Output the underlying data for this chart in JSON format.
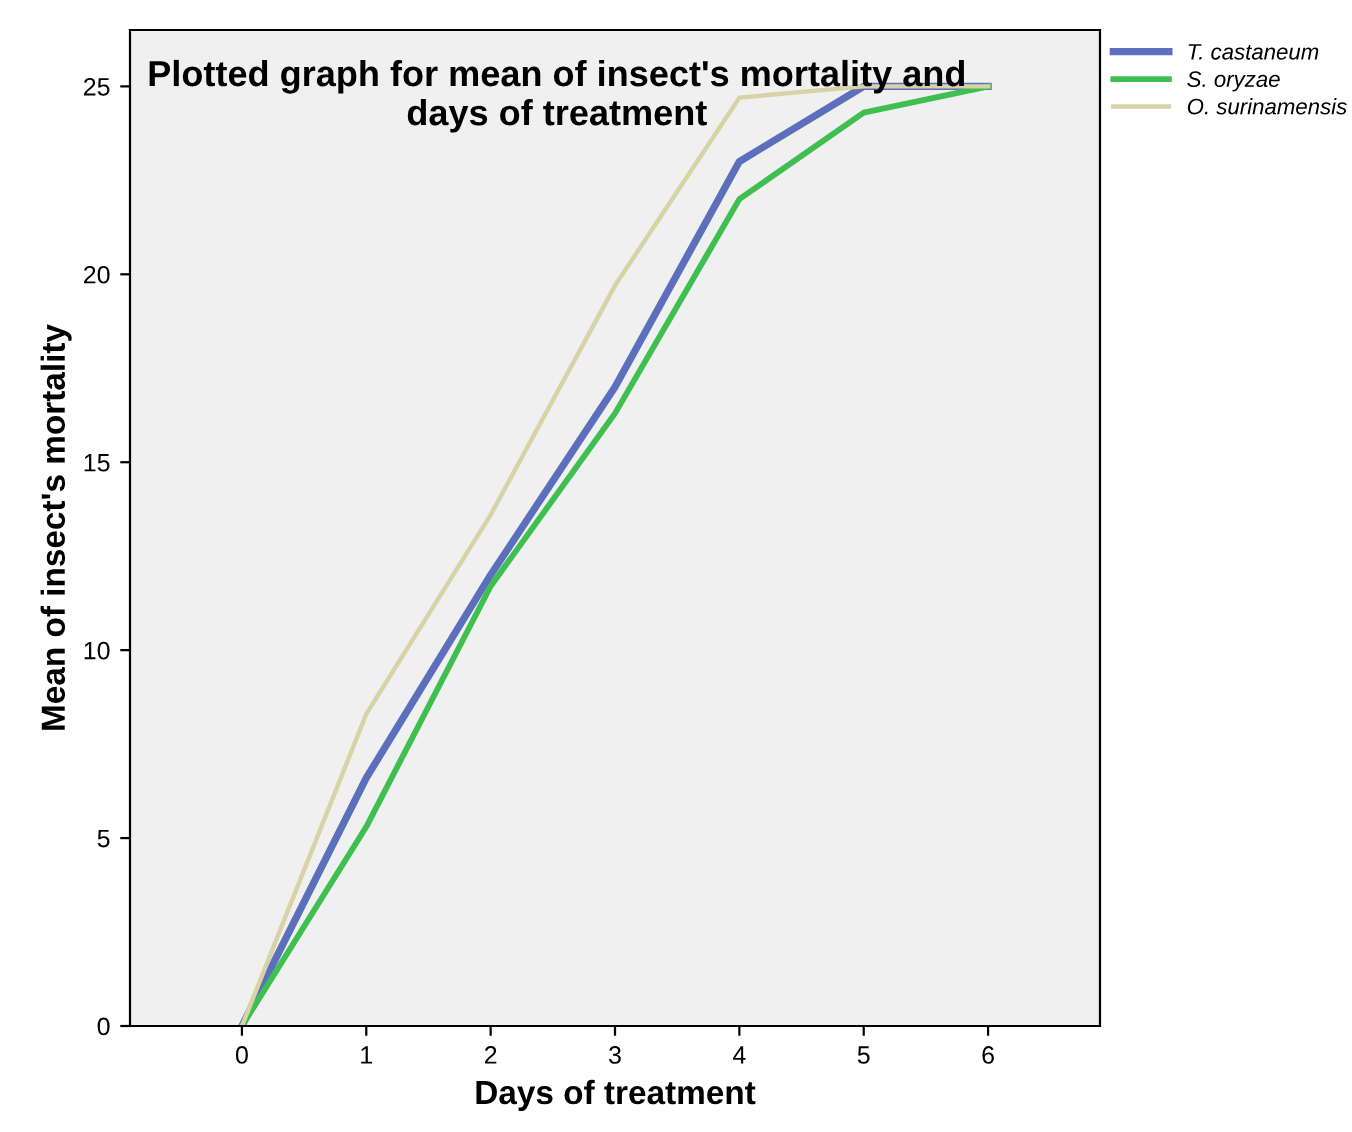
{
  "chart_data": {
    "type": "line",
    "title": "Plotted graph for mean of insect's mortality and\ndays of treatment",
    "xlabel": "Days of treatment",
    "ylabel": "Mean of insect's mortality",
    "x": [
      0,
      1,
      2,
      3,
      4,
      5,
      6
    ],
    "series": [
      {
        "name": "T. castaneum",
        "color": "#5b6fbd",
        "values": [
          0,
          6.6,
          12.0,
          17.0,
          23.0,
          25.0,
          25.0
        ]
      },
      {
        "name": "S. oryzae",
        "color": "#3fbf4f",
        "values": [
          0,
          5.3,
          11.7,
          16.3,
          22.0,
          24.3,
          25.0
        ]
      },
      {
        "name": "O. surinamensis",
        "color": "#d9d2a6",
        "values": [
          0,
          8.3,
          13.6,
          19.7,
          24.7,
          25.0,
          25.0
        ]
      }
    ],
    "xlim": [
      -0.9,
      6.9
    ],
    "ylim": [
      0,
      26.5
    ],
    "xticks": [
      0,
      1,
      2,
      3,
      4,
      5,
      6
    ],
    "yticks": [
      0,
      5,
      10,
      15,
      20,
      25
    ],
    "grid": false,
    "legend": "top right",
    "marker": "none",
    "line_style": "solid"
  }
}
